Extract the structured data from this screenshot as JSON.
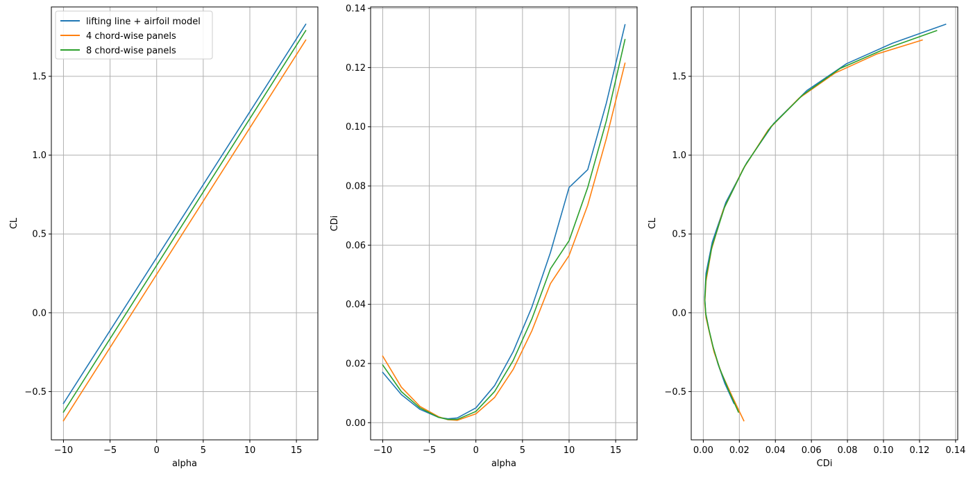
{
  "colors": {
    "blue": "#1f77b4",
    "orange": "#ff7f0e",
    "green": "#2ca02c",
    "grid": "#b0b0b0"
  },
  "chart_data": [
    {
      "type": "line",
      "xlabel": "alpha",
      "ylabel": "CL",
      "xlim": [
        -11.3,
        17.3
      ],
      "ylim": [
        -0.806,
        1.94
      ],
      "xticks": [
        -10,
        -5,
        0,
        5,
        10,
        15
      ],
      "xtick_labels": [
        "−10",
        "−5",
        "0",
        "5",
        "10",
        "15"
      ],
      "yticks": [
        -0.5,
        0.0,
        0.5,
        1.0,
        1.5
      ],
      "ytick_labels": [
        "−0.5",
        "0.0",
        "0.5",
        "1.0",
        "1.5"
      ],
      "grid": true,
      "legend": "top-left",
      "series": [
        {
          "name": "lifting line + airfoil model",
          "color": "#1f77b4",
          "x": [
            -10,
            16
          ],
          "y": [
            -0.575,
            1.83
          ]
        },
        {
          "name": "4 chord-wise panels",
          "color": "#ff7f0e",
          "x": [
            -10,
            16
          ],
          "y": [
            -0.685,
            1.73
          ]
        },
        {
          "name": "8 chord-wise panels",
          "color": "#2ca02c",
          "x": [
            -10,
            16
          ],
          "y": [
            -0.63,
            1.79
          ]
        }
      ]
    },
    {
      "type": "line",
      "xlabel": "alpha",
      "ylabel": "CDi",
      "xlim": [
        -11.3,
        17.3
      ],
      "ylim": [
        -0.0058,
        0.1405
      ],
      "xticks": [
        -10,
        -5,
        0,
        5,
        10,
        15
      ],
      "xtick_labels": [
        "−10",
        "−5",
        "0",
        "5",
        "10",
        "15"
      ],
      "yticks": [
        0.0,
        0.02,
        0.04,
        0.06,
        0.08,
        0.1,
        0.12,
        0.14
      ],
      "ytick_labels": [
        "0.00",
        "0.02",
        "0.04",
        "0.06",
        "0.08",
        "0.10",
        "0.12",
        "0.14"
      ],
      "grid": true,
      "series": [
        {
          "name": "lifting line + airfoil model",
          "color": "#1f77b4",
          "x": [
            -10,
            -8,
            -6,
            -4,
            -3,
            -2,
            0,
            2,
            4,
            6,
            8,
            10,
            12,
            14,
            16
          ],
          "y": [
            0.017,
            0.0095,
            0.0045,
            0.0018,
            0.0013,
            0.0016,
            0.005,
            0.0125,
            0.024,
            0.039,
            0.0575,
            0.0795,
            0.0855,
            0.108,
            0.1345
          ]
        },
        {
          "name": "4 chord-wise panels",
          "color": "#ff7f0e",
          "x": [
            -10,
            -8,
            -6,
            -4,
            -3,
            -2,
            0,
            2,
            4,
            6,
            8,
            10,
            12,
            14,
            16
          ],
          "y": [
            0.0225,
            0.012,
            0.0055,
            0.002,
            0.001,
            0.0008,
            0.003,
            0.0085,
            0.018,
            0.031,
            0.047,
            0.0565,
            0.0735,
            0.096,
            0.1215
          ]
        },
        {
          "name": "8 chord-wise panels",
          "color": "#2ca02c",
          "x": [
            -10,
            -8,
            -6,
            -4,
            -3,
            -2,
            0,
            2,
            4,
            6,
            8,
            10,
            12,
            14,
            16
          ],
          "y": [
            0.0195,
            0.0105,
            0.005,
            0.0018,
            0.0011,
            0.0011,
            0.0038,
            0.0105,
            0.021,
            0.035,
            0.052,
            0.0615,
            0.0795,
            0.102,
            0.1295
          ]
        }
      ]
    },
    {
      "type": "line",
      "xlabel": "CDi",
      "ylabel": "CL",
      "xlim": [
        -0.0067,
        0.1412
      ],
      "ylim": [
        -0.806,
        1.94
      ],
      "xticks": [
        0.0,
        0.02,
        0.04,
        0.06,
        0.08,
        0.1,
        0.12,
        0.14
      ],
      "xtick_labels": [
        "0.00",
        "0.02",
        "0.04",
        "0.06",
        "0.08",
        "0.10",
        "0.12",
        "0.14"
      ],
      "yticks": [
        -0.5,
        0.0,
        0.5,
        1.0,
        1.5
      ],
      "ytick_labels": [
        "−0.5",
        "0.0",
        "0.5",
        "1.0",
        "1.5"
      ],
      "grid": true,
      "series": [
        {
          "name": "lifting line + airfoil model",
          "color": "#1f77b4",
          "x": [
            0.017,
            0.012,
            0.008,
            0.005,
            0.003,
            0.0013,
            0.0008,
            0.0015,
            0.005,
            0.0125,
            0.024,
            0.039,
            0.0575,
            0.0795,
            0.105,
            0.1345
          ],
          "y": [
            -0.575,
            -0.45,
            -0.32,
            -0.2,
            -0.1,
            0.0,
            0.1,
            0.25,
            0.45,
            0.7,
            0.95,
            1.2,
            1.41,
            1.58,
            1.71,
            1.83
          ]
        },
        {
          "name": "4 chord-wise panels",
          "color": "#ff7f0e",
          "x": [
            0.0225,
            0.016,
            0.01,
            0.006,
            0.0035,
            0.0015,
            0.0008,
            0.0015,
            0.0045,
            0.011,
            0.022,
            0.036,
            0.053,
            0.073,
            0.096,
            0.1215
          ],
          "y": [
            -0.685,
            -0.53,
            -0.38,
            -0.25,
            -0.13,
            -0.03,
            0.06,
            0.2,
            0.4,
            0.65,
            0.91,
            1.16,
            1.36,
            1.52,
            1.64,
            1.73
          ]
        },
        {
          "name": "8 chord-wise panels",
          "color": "#2ca02c",
          "x": [
            0.0195,
            0.014,
            0.009,
            0.0055,
            0.0032,
            0.0014,
            0.0008,
            0.0015,
            0.0048,
            0.0118,
            0.023,
            0.0375,
            0.055,
            0.076,
            0.1,
            0.1295
          ],
          "y": [
            -0.63,
            -0.49,
            -0.35,
            -0.22,
            -0.11,
            -0.01,
            0.08,
            0.22,
            0.42,
            0.67,
            0.93,
            1.18,
            1.38,
            1.55,
            1.67,
            1.79
          ]
        }
      ]
    }
  ]
}
